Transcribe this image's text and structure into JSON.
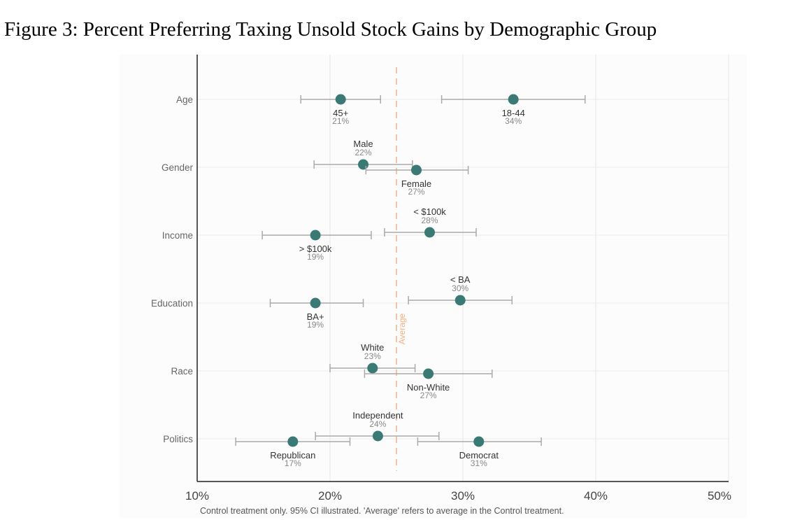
{
  "figure_title": "Figure 3: Percent Preferring Taxing Unsold Stock Gains by Demographic Group",
  "chart_data": {
    "type": "scatter",
    "subtype": "dot-plot-with-error-bars",
    "xlim": [
      10,
      50
    ],
    "xticks": [
      "10%",
      "20%",
      "30%",
      "40%",
      "50%"
    ],
    "xtick_values": [
      10,
      20,
      30,
      40,
      50
    ],
    "average": 25,
    "average_label": "Average",
    "caption": "Control treatment only. 95% CI illustrated. 'Average' refers to average in the Control treatment.",
    "point_color": "#3a7a74",
    "average_color": "#f4b183",
    "categories": [
      "Age",
      "Gender",
      "Income",
      "Education",
      "Race",
      "Politics"
    ],
    "groups": [
      {
        "category": "Age",
        "points": [
          {
            "name": "45+",
            "label": "21%",
            "value": 20.8,
            "ci": [
              17.8,
              23.8
            ],
            "label_pos": "below",
            "offset": 0
          },
          {
            "name": "18-44",
            "label": "34%",
            "value": 33.8,
            "ci": [
              28.4,
              39.2
            ],
            "label_pos": "below",
            "offset": 0
          }
        ]
      },
      {
        "category": "Gender",
        "points": [
          {
            "name": "Male",
            "label": "22%",
            "value": 22.5,
            "ci": [
              18.8,
              26.2
            ],
            "label_pos": "above",
            "offset": -1
          },
          {
            "name": "Female",
            "label": "27%",
            "value": 26.5,
            "ci": [
              22.7,
              30.4
            ],
            "label_pos": "below",
            "offset": 1
          }
        ]
      },
      {
        "category": "Income",
        "points": [
          {
            "name": "< $100k",
            "label": "28%",
            "value": 27.5,
            "ci": [
              24.1,
              31.0
            ],
            "label_pos": "above",
            "offset": -1
          },
          {
            "name": "> $100k",
            "label": "19%",
            "value": 18.9,
            "ci": [
              14.9,
              23.1
            ],
            "label_pos": "below",
            "offset": 0
          }
        ]
      },
      {
        "category": "Education",
        "points": [
          {
            "name": "< BA",
            "label": "30%",
            "value": 29.8,
            "ci": [
              25.9,
              33.7
            ],
            "label_pos": "above",
            "offset": -1
          },
          {
            "name": "BA+",
            "label": "19%",
            "value": 18.9,
            "ci": [
              15.5,
              22.5
            ],
            "label_pos": "below",
            "offset": 0
          }
        ]
      },
      {
        "category": "Race",
        "points": [
          {
            "name": "White",
            "label": "23%",
            "value": 23.2,
            "ci": [
              20.0,
              26.4
            ],
            "label_pos": "above",
            "offset": -1
          },
          {
            "name": "Non-White",
            "label": "27%",
            "value": 27.4,
            "ci": [
              22.6,
              32.2
            ],
            "label_pos": "below",
            "offset": 1
          }
        ]
      },
      {
        "category": "Politics",
        "points": [
          {
            "name": "Independent",
            "label": "24%",
            "value": 23.6,
            "ci": [
              18.9,
              28.2
            ],
            "label_pos": "above",
            "offset": -1
          },
          {
            "name": "Republican",
            "label": "17%",
            "value": 17.2,
            "ci": [
              12.9,
              21.5
            ],
            "label_pos": "below",
            "offset": 1
          },
          {
            "name": "Democrat",
            "label": "31%",
            "value": 31.2,
            "ci": [
              26.6,
              35.9
            ],
            "label_pos": "below",
            "offset": 1
          }
        ]
      }
    ]
  }
}
